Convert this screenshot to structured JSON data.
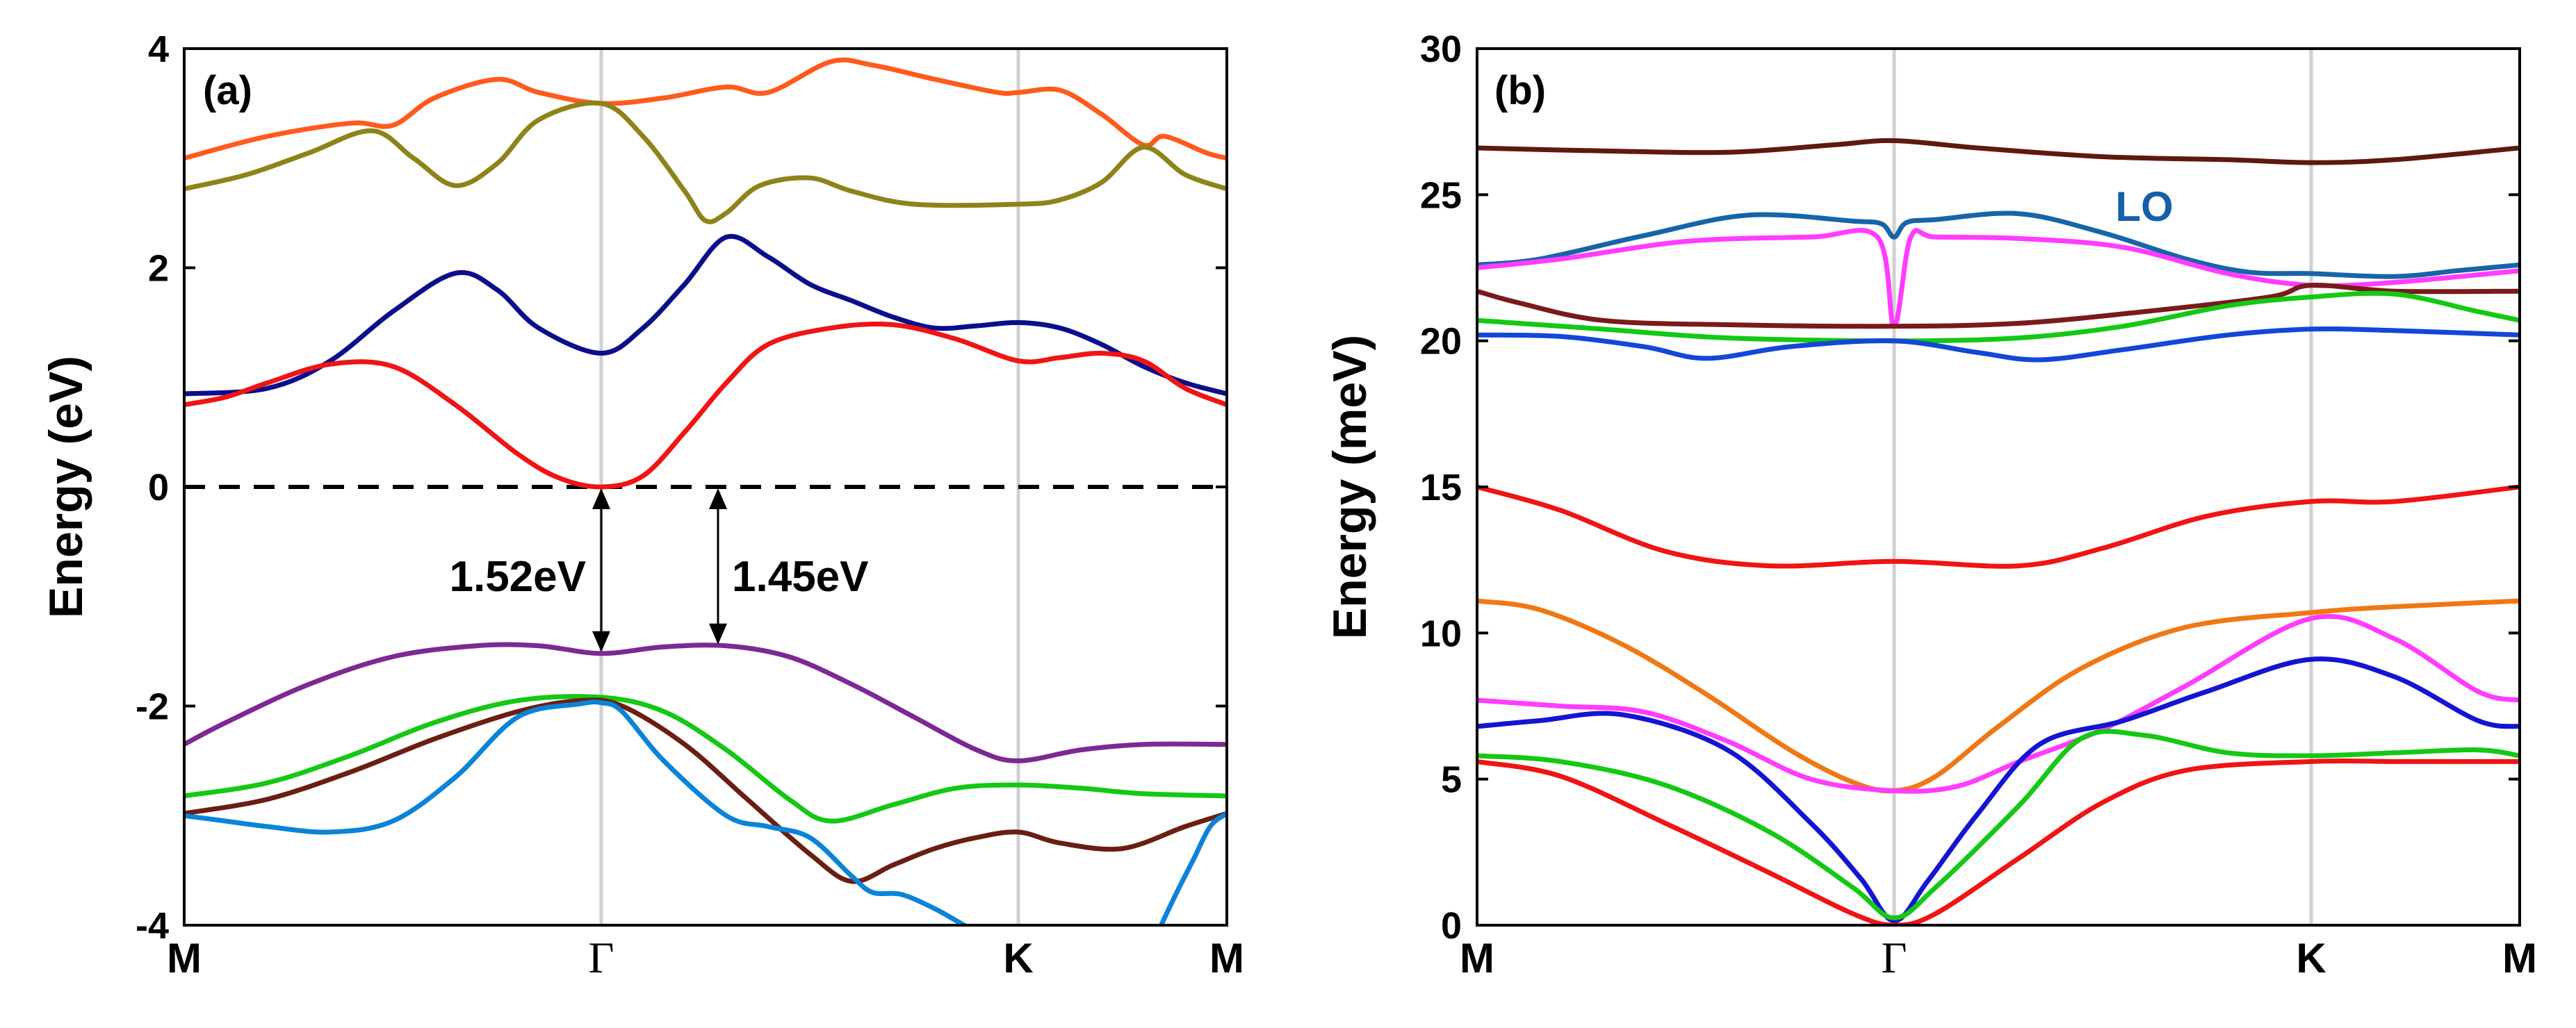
{
  "chart_data": [
    {
      "type": "line",
      "panel": "(a)",
      "ylabel": "Energy (eV)",
      "ylim": [
        -4,
        4
      ],
      "yticks": [
        -4,
        -2,
        0,
        2,
        4
      ],
      "kpoints": [
        {
          "label": "M",
          "pos": 0
        },
        {
          "label": "Γ",
          "pos": 1
        },
        {
          "label": "K",
          "pos": 2
        },
        {
          "label": "M",
          "pos": 2.5
        }
      ],
      "xlim": [
        0,
        2.5
      ],
      "fermi_level": 0,
      "annotations": [
        {
          "text": "1.52eV",
          "arrow_x": 1.0,
          "from": 0.0,
          "to": -1.52
        },
        {
          "text": "1.45eV",
          "arrow_x": 1.28,
          "from": 0.0,
          "to": -1.45
        }
      ],
      "series": [
        {
          "name": "band-orange",
          "color": "#ff5a1e",
          "x": [
            0,
            0.2,
            0.4,
            0.5,
            0.6,
            0.75,
            0.85,
            1.0,
            1.15,
            1.3,
            1.4,
            1.55,
            1.65,
            1.8,
            1.95,
            2.0,
            2.1,
            2.2,
            2.3,
            2.35,
            2.45,
            2.5
          ],
          "y": [
            3.0,
            3.2,
            3.32,
            3.3,
            3.55,
            3.72,
            3.6,
            3.5,
            3.55,
            3.65,
            3.6,
            3.88,
            3.85,
            3.72,
            3.6,
            3.6,
            3.62,
            3.4,
            3.12,
            3.2,
            3.05,
            3.0
          ]
        },
        {
          "name": "band-olive",
          "color": "#8c8419",
          "x": [
            0,
            0.15,
            0.3,
            0.45,
            0.55,
            0.65,
            0.75,
            0.85,
            1.0,
            1.1,
            1.2,
            1.25,
            1.3,
            1.38,
            1.5,
            1.6,
            1.75,
            2.0,
            2.1,
            2.2,
            2.3,
            2.4,
            2.5
          ],
          "y": [
            2.72,
            2.85,
            3.05,
            3.25,
            3.0,
            2.75,
            2.95,
            3.35,
            3.5,
            3.2,
            2.7,
            2.43,
            2.5,
            2.75,
            2.82,
            2.7,
            2.58,
            2.58,
            2.62,
            2.78,
            3.1,
            2.85,
            2.72
          ]
        },
        {
          "name": "band-navy",
          "color": "#0b0e8c",
          "x": [
            0,
            0.2,
            0.35,
            0.5,
            0.65,
            0.75,
            0.85,
            1.0,
            1.1,
            1.2,
            1.3,
            1.4,
            1.5,
            1.6,
            1.7,
            1.8,
            1.9,
            2.0,
            2.1,
            2.2,
            2.3,
            2.4,
            2.5
          ],
          "y": [
            0.85,
            0.9,
            1.15,
            1.6,
            1.95,
            1.8,
            1.45,
            1.22,
            1.45,
            1.85,
            2.28,
            2.1,
            1.85,
            1.7,
            1.55,
            1.45,
            1.47,
            1.5,
            1.45,
            1.3,
            1.1,
            0.95,
            0.85
          ]
        },
        {
          "name": "band-red",
          "color": "#f01414",
          "x": [
            0,
            0.1,
            0.2,
            0.35,
            0.5,
            0.65,
            0.8,
            0.9,
            1.0,
            1.1,
            1.2,
            1.3,
            1.4,
            1.55,
            1.7,
            1.85,
            2.0,
            2.1,
            2.2,
            2.3,
            2.4,
            2.5
          ],
          "y": [
            0.75,
            0.82,
            0.95,
            1.12,
            1.1,
            0.75,
            0.3,
            0.08,
            0.0,
            0.1,
            0.5,
            0.95,
            1.3,
            1.45,
            1.48,
            1.35,
            1.15,
            1.18,
            1.22,
            1.15,
            0.9,
            0.75
          ]
        },
        {
          "name": "band-purple",
          "color": "#7d2894",
          "x": [
            0,
            0.1,
            0.3,
            0.5,
            0.7,
            0.85,
            1.0,
            1.15,
            1.3,
            1.45,
            1.6,
            1.75,
            1.9,
            2.0,
            2.15,
            2.3,
            2.5
          ],
          "y": [
            -2.35,
            -2.15,
            -1.8,
            -1.55,
            -1.45,
            -1.45,
            -1.52,
            -1.46,
            -1.45,
            -1.55,
            -1.8,
            -2.1,
            -2.4,
            -2.5,
            -2.4,
            -2.35,
            -2.35
          ]
        },
        {
          "name": "band-green",
          "color": "#14c814",
          "x": [
            0,
            0.2,
            0.4,
            0.6,
            0.8,
            1.0,
            1.15,
            1.3,
            1.45,
            1.55,
            1.7,
            1.85,
            2.0,
            2.15,
            2.3,
            2.5
          ],
          "y": [
            -2.82,
            -2.7,
            -2.45,
            -2.15,
            -1.95,
            -1.92,
            -2.05,
            -2.4,
            -2.85,
            -3.05,
            -2.9,
            -2.75,
            -2.72,
            -2.75,
            -2.8,
            -2.82
          ]
        },
        {
          "name": "band-brown",
          "color": "#6b1e12",
          "x": [
            0,
            0.2,
            0.4,
            0.6,
            0.8,
            0.95,
            1.05,
            1.2,
            1.35,
            1.5,
            1.6,
            1.7,
            1.8,
            1.9,
            2.0,
            2.1,
            2.25,
            2.4,
            2.5
          ],
          "y": [
            -2.98,
            -2.85,
            -2.6,
            -2.3,
            -2.05,
            -1.95,
            -2.0,
            -2.35,
            -2.85,
            -3.35,
            -3.6,
            -3.45,
            -3.3,
            -3.2,
            -3.15,
            -3.25,
            -3.3,
            -3.1,
            -2.98
          ]
        },
        {
          "name": "band-blue",
          "color": "#0b83d8",
          "x": [
            0,
            0.1,
            0.2,
            0.35,
            0.5,
            0.65,
            0.8,
            0.95,
            1.0,
            1.05,
            1.15,
            1.3,
            1.4,
            1.5,
            1.6,
            1.65,
            1.72,
            1.8,
            1.87,
            1.9
          ],
          "y": [
            -3.0,
            -3.05,
            -3.1,
            -3.15,
            -3.05,
            -2.65,
            -2.1,
            -1.98,
            -1.97,
            -2.05,
            -2.5,
            -3.0,
            -3.1,
            -3.2,
            -3.55,
            -3.7,
            -3.72,
            -3.85,
            -4.0,
            -4.05
          ]
        },
        {
          "name": "band-blue-2",
          "color": "#0b83d8",
          "x": [
            2.34,
            2.38,
            2.42,
            2.46,
            2.5
          ],
          "y": [
            -4.02,
            -3.7,
            -3.4,
            -3.1,
            -2.98
          ]
        }
      ]
    },
    {
      "type": "line",
      "panel": "(b)",
      "ylabel": "Energy (meV)",
      "ylim": [
        0,
        30
      ],
      "yticks": [
        0,
        5,
        10,
        15,
        20,
        25,
        30
      ],
      "kpoints": [
        {
          "label": "M",
          "pos": 0
        },
        {
          "label": "Γ",
          "pos": 1
        },
        {
          "label": "K",
          "pos": 2
        },
        {
          "label": "M",
          "pos": 2.5
        }
      ],
      "xlim": [
        0,
        2.5
      ],
      "annotations": [
        {
          "text": "LO",
          "x": 1.6,
          "y": 24.1,
          "color": "#1560a8"
        }
      ],
      "series": [
        {
          "name": "mode-darkbrown",
          "color": "#5e1a0c",
          "x": [
            0,
            0.3,
            0.6,
            0.85,
            1.0,
            1.2,
            1.5,
            1.8,
            2.0,
            2.2,
            2.5
          ],
          "y": [
            26.6,
            26.5,
            26.45,
            26.7,
            26.85,
            26.6,
            26.3,
            26.2,
            26.1,
            26.2,
            26.6
          ]
        },
        {
          "name": "mode-LO",
          "color": "#1765a8",
          "x": [
            0,
            0.15,
            0.4,
            0.65,
            0.9,
            0.97,
            1.0,
            1.03,
            1.1,
            1.3,
            1.5,
            1.7,
            1.85,
            2.0,
            2.2,
            2.35,
            2.5
          ],
          "y": [
            22.6,
            22.8,
            23.6,
            24.3,
            24.1,
            24.0,
            23.55,
            24.05,
            24.15,
            24.35,
            23.7,
            22.8,
            22.35,
            22.3,
            22.2,
            22.4,
            22.6
          ]
        },
        {
          "name": "mode-magenta-high",
          "color": "#ff3cff",
          "x": [
            0,
            0.2,
            0.5,
            0.8,
            0.96,
            1.0,
            1.04,
            1.1,
            1.3,
            1.55,
            1.8,
            2.0,
            2.2,
            2.5
          ],
          "y": [
            22.5,
            22.8,
            23.4,
            23.55,
            23.55,
            20.5,
            23.55,
            23.55,
            23.5,
            23.2,
            22.3,
            21.9,
            22.0,
            22.4
          ]
        },
        {
          "name": "mode-brown-high",
          "color": "#7a1a1a",
          "x": [
            0,
            0.1,
            0.3,
            0.6,
            1.0,
            1.3,
            1.6,
            1.9,
            2.0,
            2.2,
            2.5
          ],
          "y": [
            21.7,
            21.3,
            20.7,
            20.55,
            20.5,
            20.6,
            21.0,
            21.5,
            21.9,
            21.7,
            21.7
          ]
        },
        {
          "name": "mode-green-high",
          "color": "#14c814",
          "x": [
            0,
            0.3,
            0.6,
            1.0,
            1.3,
            1.55,
            1.8,
            2.0,
            2.2,
            2.4,
            2.5
          ],
          "y": [
            20.7,
            20.4,
            20.1,
            20.0,
            20.1,
            20.5,
            21.2,
            21.5,
            21.6,
            21.0,
            20.7
          ]
        },
        {
          "name": "mode-blue-high",
          "color": "#1446d8",
          "x": [
            0,
            0.2,
            0.4,
            0.55,
            0.75,
            1.0,
            1.2,
            1.35,
            1.55,
            1.8,
            2.0,
            2.2,
            2.5
          ],
          "y": [
            20.2,
            20.15,
            19.8,
            19.4,
            19.8,
            20.0,
            19.6,
            19.35,
            19.7,
            20.2,
            20.4,
            20.35,
            20.2
          ]
        },
        {
          "name": "mode-red-mid",
          "color": "#f01414",
          "x": [
            0,
            0.2,
            0.45,
            0.7,
            1.0,
            1.3,
            1.5,
            1.75,
            2.0,
            2.2,
            2.5
          ],
          "y": [
            15.0,
            14.2,
            12.8,
            12.3,
            12.45,
            12.3,
            12.9,
            14.0,
            14.5,
            14.5,
            15.0
          ]
        },
        {
          "name": "mode-orange",
          "color": "#f07814",
          "x": [
            0,
            0.15,
            0.35,
            0.55,
            0.75,
            0.9,
            1.0,
            1.1,
            1.25,
            1.45,
            1.7,
            2.0,
            2.2,
            2.5
          ],
          "y": [
            11.1,
            10.8,
            9.6,
            7.9,
            6.0,
            4.9,
            4.6,
            5.1,
            6.8,
            8.8,
            10.2,
            10.7,
            10.9,
            11.1
          ]
        },
        {
          "name": "mode-magenta-low",
          "color": "#ff3cff",
          "x": [
            0,
            0.2,
            0.4,
            0.6,
            0.8,
            1.0,
            1.15,
            1.3,
            1.5,
            1.7,
            2.0,
            2.2,
            2.4,
            2.5
          ],
          "y": [
            7.7,
            7.5,
            7.3,
            6.3,
            5.0,
            4.6,
            4.75,
            5.6,
            6.7,
            8.2,
            10.5,
            9.8,
            8.0,
            7.7
          ]
        },
        {
          "name": "mode-blue-low",
          "color": "#1414d2",
          "x": [
            0,
            0.15,
            0.35,
            0.6,
            0.8,
            0.92,
            1.0,
            1.08,
            1.2,
            1.35,
            1.55,
            1.75,
            2.0,
            2.2,
            2.4,
            2.5
          ],
          "y": [
            6.8,
            7.0,
            7.2,
            6.0,
            3.5,
            1.6,
            0.15,
            1.5,
            3.8,
            6.2,
            7.0,
            8.0,
            9.1,
            8.5,
            7.0,
            6.8
          ]
        },
        {
          "name": "mode-green-low",
          "color": "#14c814",
          "x": [
            0,
            0.2,
            0.45,
            0.7,
            0.9,
            1.0,
            1.1,
            1.3,
            1.45,
            1.6,
            1.8,
            2.0,
            2.2,
            2.4,
            2.5
          ],
          "y": [
            5.8,
            5.6,
            4.8,
            3.2,
            1.3,
            0.25,
            1.3,
            4.1,
            6.4,
            6.5,
            5.9,
            5.8,
            5.9,
            6.0,
            5.8
          ]
        },
        {
          "name": "mode-red-low",
          "color": "#f01414",
          "x": [
            0,
            0.2,
            0.45,
            0.7,
            0.9,
            1.0,
            1.1,
            1.3,
            1.5,
            1.7,
            2.0,
            2.2,
            2.4,
            2.5
          ],
          "y": [
            5.6,
            5.1,
            3.5,
            1.8,
            0.4,
            0.0,
            0.4,
            2.3,
            4.2,
            5.3,
            5.6,
            5.6,
            5.6,
            5.6
          ]
        }
      ]
    }
  ]
}
